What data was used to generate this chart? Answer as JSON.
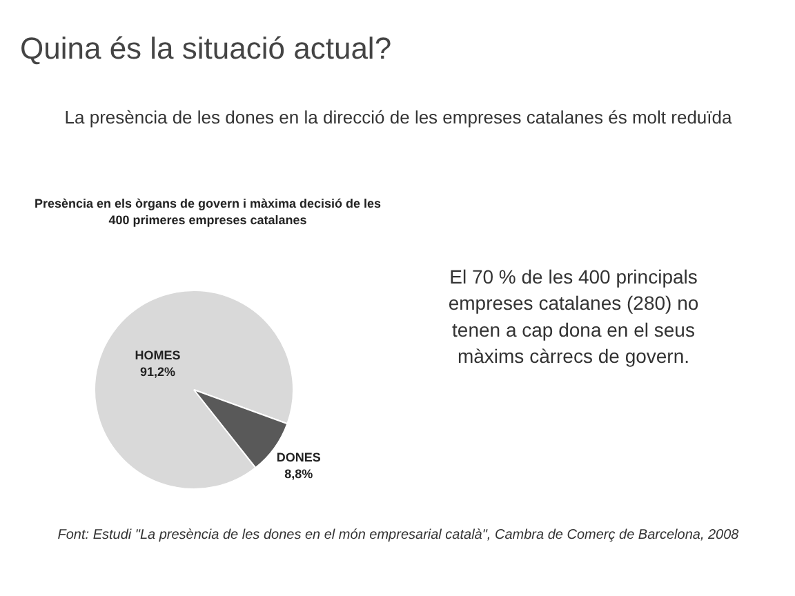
{
  "chart_data": {
    "type": "pie",
    "title": "Quina és la situació actual?",
    "subtitle": "Presència en els òrgans de govern i màxima decisió de les 400 primeres empreses catalanes",
    "categories": [
      "HOMES",
      "DONES"
    ],
    "values": [
      91.2,
      8.8
    ],
    "colors": [
      "#d9d9d9",
      "#595959"
    ],
    "value_labels": [
      "91,2%",
      "8,8%"
    ],
    "annotations": [
      "La presència de les dones en la direcció de les empreses catalanes és molt reduïda",
      "El 70 % de les 400 principals empreses catalanes (280) no tenen a cap dona en el seus màxims càrrecs de govern.",
      "Font: Estudi \"La presència de les dones en el món empresarial català\", Cambra de Comerç de Barcelona, 2008"
    ]
  }
}
